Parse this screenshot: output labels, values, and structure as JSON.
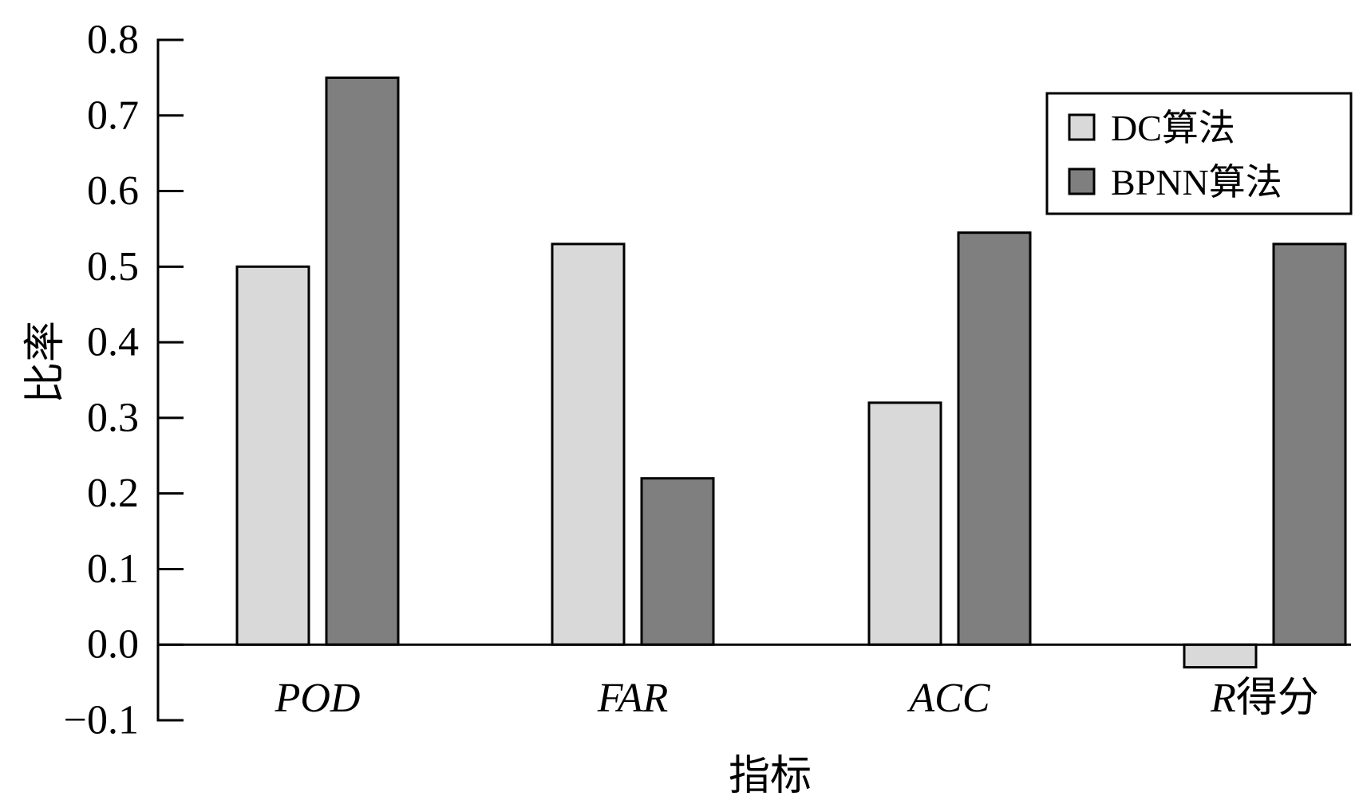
{
  "chart_data": {
    "type": "bar",
    "title": "",
    "xlabel": "指标",
    "ylabel": "比率",
    "ylim": [
      -0.1,
      0.8
    ],
    "yticks": [
      -0.1,
      0.0,
      0.1,
      0.2,
      0.3,
      0.4,
      0.5,
      0.6,
      0.7,
      0.8
    ],
    "ytick_labels": [
      "−0.1",
      "0.0",
      "0.1",
      "0.2",
      "0.3",
      "0.4",
      "0.5",
      "0.6",
      "0.7",
      "0.8"
    ],
    "categories": [
      {
        "label": "POD",
        "italic": "POD",
        "rest": ""
      },
      {
        "label": "FAR",
        "italic": "FAR",
        "rest": ""
      },
      {
        "label": "ACC",
        "italic": "ACC",
        "rest": ""
      },
      {
        "label": "R得分",
        "italic": "R",
        "rest": "得分"
      }
    ],
    "series": [
      {
        "name": "DC算法",
        "color": "#d9d9d9",
        "values": [
          0.5,
          0.53,
          0.32,
          -0.03
        ]
      },
      {
        "name": "BPNN算法",
        "color": "#7f7f7f",
        "values": [
          0.75,
          0.22,
          0.545,
          0.53
        ]
      }
    ],
    "legend": {
      "position": "top-right"
    },
    "grid": false
  }
}
